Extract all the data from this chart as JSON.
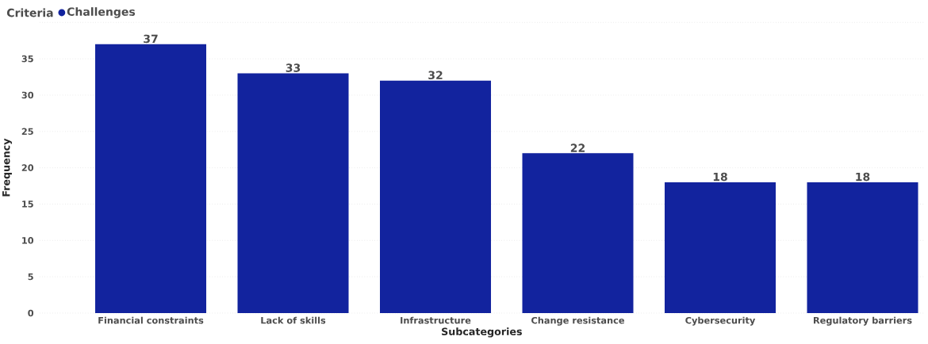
{
  "chart_data": {
    "type": "bar",
    "xlabel": "Subcategories",
    "ylabel": "Frequency",
    "legend_title": "Criteria",
    "categories": [
      "Financial constraints",
      "Lack of skills",
      "Infrastructure",
      "Change resistance",
      "Cybersecurity",
      "Regulatory barriers"
    ],
    "series": [
      {
        "name": "Challenges",
        "color": "#12239e",
        "values": [
          37,
          33,
          32,
          22,
          18,
          18
        ]
      }
    ],
    "ylim": [
      0,
      40
    ],
    "yticks": [
      0,
      5,
      10,
      15,
      20,
      25,
      30,
      35,
      {
        "value": 40,
        "label": null
      }
    ],
    "grid": "y",
    "legend": "top left",
    "data_labels": true
  }
}
